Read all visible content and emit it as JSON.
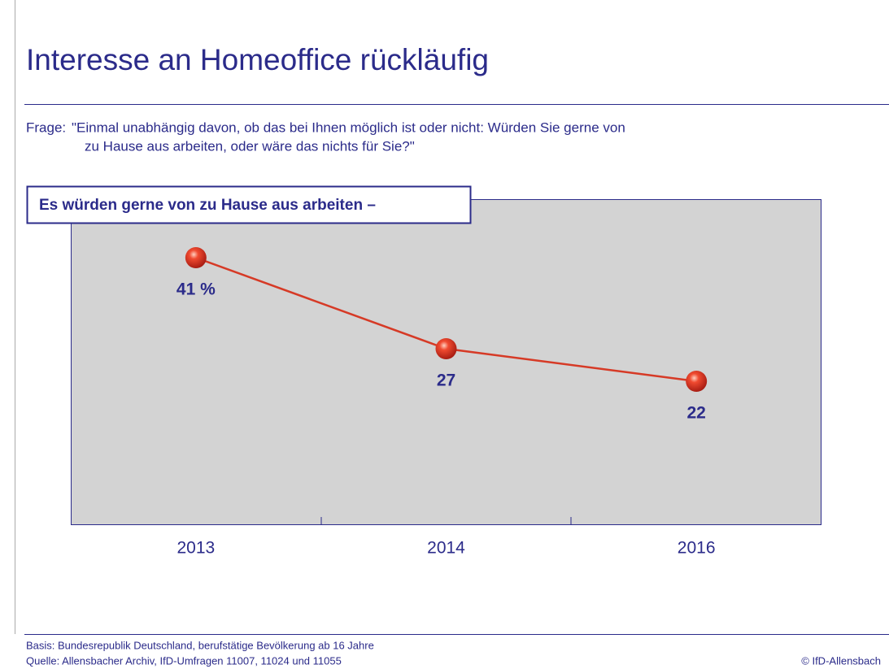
{
  "chart_data": {
    "type": "line",
    "title": "Interesse an Homeoffice rückläufig",
    "question_label": "Frage:",
    "question_lines": [
      "\"Einmal unabhängig davon, ob das bei Ihnen möglich ist oder nicht: Würden Sie gerne von",
      "zu Hause aus arbeiten, oder wäre das nichts für Sie?\""
    ],
    "box_label": "Es würden gerne von zu Hause aus arbeiten –",
    "categories": [
      "2013",
      "2014",
      "2016"
    ],
    "values": [
      41,
      27,
      22
    ],
    "value_labels": [
      "41 %",
      "27",
      "22"
    ],
    "color": "#d63a26",
    "ylim": [
      0,
      50
    ],
    "basis": "Basis: Bundesrepublik Deutschland, berufstätige Bevölkerung ab 16 Jahre",
    "source": "Quelle: Allensbacher Archiv, IfD-Umfragen 11007, 11024 und 11055",
    "copyright": "© IfD-Allensbach"
  }
}
